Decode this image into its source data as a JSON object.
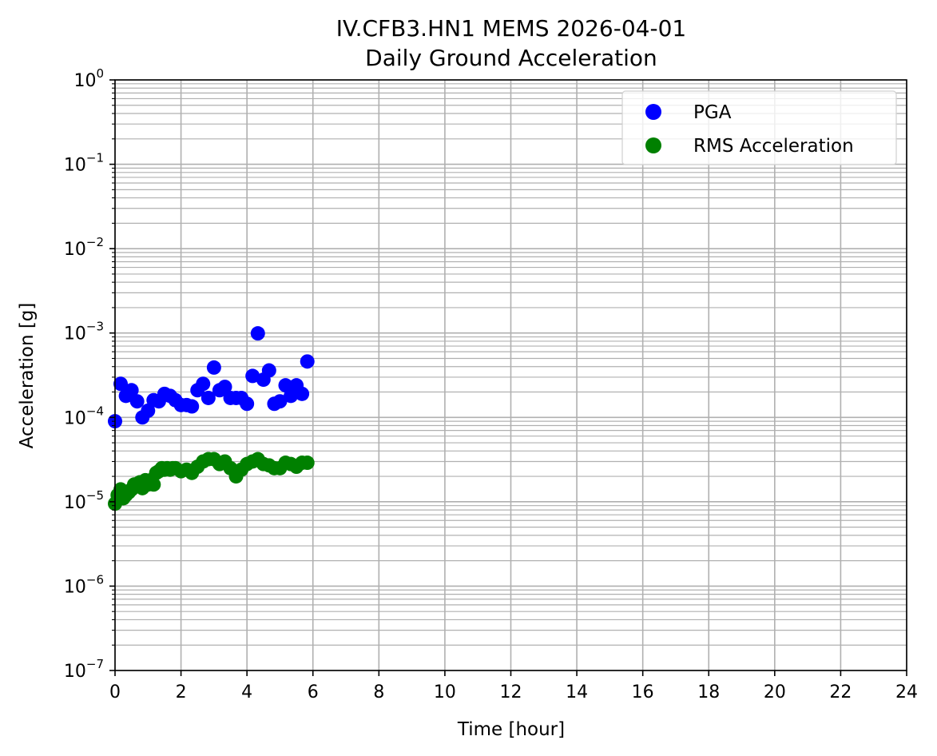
{
  "chart_data": {
    "type": "scatter",
    "title": "IV.CFB3.HN1 MEMS 2026-04-01",
    "subtitle": "Daily Ground Acceleration",
    "xlabel": "Time [hour]",
    "ylabel": "Acceleration [g]",
    "xlim": [
      0,
      24
    ],
    "ylim": [
      1e-07,
      1
    ],
    "yscale": "log",
    "grid": true,
    "legend_position": "top-right",
    "x_ticks": [
      0,
      2,
      4,
      6,
      8,
      10,
      12,
      14,
      16,
      18,
      20,
      22,
      24
    ],
    "x_tick_labels": [
      "0",
      "2",
      "4",
      "6",
      "8",
      "10",
      "12",
      "14",
      "16",
      "18",
      "20",
      "22",
      "24"
    ],
    "y_ticks": [
      {
        "value": 1e-07,
        "base": "10",
        "exp": "−7"
      },
      {
        "value": 1e-06,
        "base": "10",
        "exp": "−6"
      },
      {
        "value": 1e-05,
        "base": "10",
        "exp": "−5"
      },
      {
        "value": 0.0001,
        "base": "10",
        "exp": "−4"
      },
      {
        "value": 0.001,
        "base": "10",
        "exp": "−3"
      },
      {
        "value": 0.01,
        "base": "10",
        "exp": "−2"
      },
      {
        "value": 0.1,
        "base": "10",
        "exp": "−1"
      },
      {
        "value": 1,
        "base": "10",
        "exp": "0"
      }
    ],
    "series": [
      {
        "name": "PGA",
        "color": "#0000ff",
        "x": [
          0.0,
          0.17,
          0.33,
          0.5,
          0.67,
          0.83,
          1.0,
          1.17,
          1.33,
          1.5,
          1.67,
          1.83,
          2.0,
          2.17,
          2.33,
          2.5,
          2.67,
          2.83,
          3.0,
          3.17,
          3.33,
          3.5,
          3.67,
          3.83,
          4.0,
          4.17,
          4.33,
          4.5,
          4.67,
          4.83,
          5.0,
          5.17,
          5.33,
          5.5,
          5.67,
          5.83
        ],
        "y": [
          9e-05,
          0.00025,
          0.00018,
          0.00021,
          0.000155,
          0.0001,
          0.00012,
          0.00016,
          0.000155,
          0.00019,
          0.00018,
          0.00016,
          0.00014,
          0.00014,
          0.000135,
          0.00021,
          0.00025,
          0.00017,
          0.00039,
          0.00021,
          0.00023,
          0.00017,
          0.00017,
          0.00017,
          0.000145,
          0.00031,
          0.00099,
          0.00028,
          0.00036,
          0.000145,
          0.000155,
          0.00024,
          0.00018,
          0.00024,
          0.00019,
          0.00046
        ]
      },
      {
        "name": "RMS Acceleration",
        "color": "#008000",
        "x": [
          0.0,
          0.08,
          0.17,
          0.25,
          0.33,
          0.42,
          0.5,
          0.58,
          0.67,
          0.75,
          0.83,
          0.92,
          1.0,
          1.08,
          1.17,
          1.25,
          1.33,
          1.42,
          1.5,
          1.58,
          1.67,
          1.75,
          1.83,
          2.0,
          2.17,
          2.33,
          2.5,
          2.67,
          2.83,
          3.0,
          3.17,
          3.33,
          3.5,
          3.67,
          3.83,
          4.0,
          4.17,
          4.33,
          4.5,
          4.67,
          4.83,
          5.0,
          5.17,
          5.33,
          5.5,
          5.67,
          5.83
        ],
        "y": [
          9.5e-06,
          1.2e-05,
          1.4e-05,
          1.1e-05,
          1.2e-05,
          1.3e-05,
          1.4e-05,
          1.6e-05,
          1.6e-05,
          1.7e-05,
          1.45e-05,
          1.8e-05,
          1.6e-05,
          1.8e-05,
          1.6e-05,
          2.2e-05,
          2.3e-05,
          2.5e-05,
          2.4e-05,
          2.5e-05,
          2.4e-05,
          2.5e-05,
          2.5e-05,
          2.3e-05,
          2.4e-05,
          2.2e-05,
          2.6e-05,
          3e-05,
          3.2e-05,
          3.2e-05,
          2.8e-05,
          3e-05,
          2.5e-05,
          2e-05,
          2.4e-05,
          2.8e-05,
          3e-05,
          3.2e-05,
          2.8e-05,
          2.7e-05,
          2.5e-05,
          2.5e-05,
          2.9e-05,
          2.8e-05,
          2.6e-05,
          2.9e-05,
          2.9e-05
        ]
      }
    ]
  }
}
